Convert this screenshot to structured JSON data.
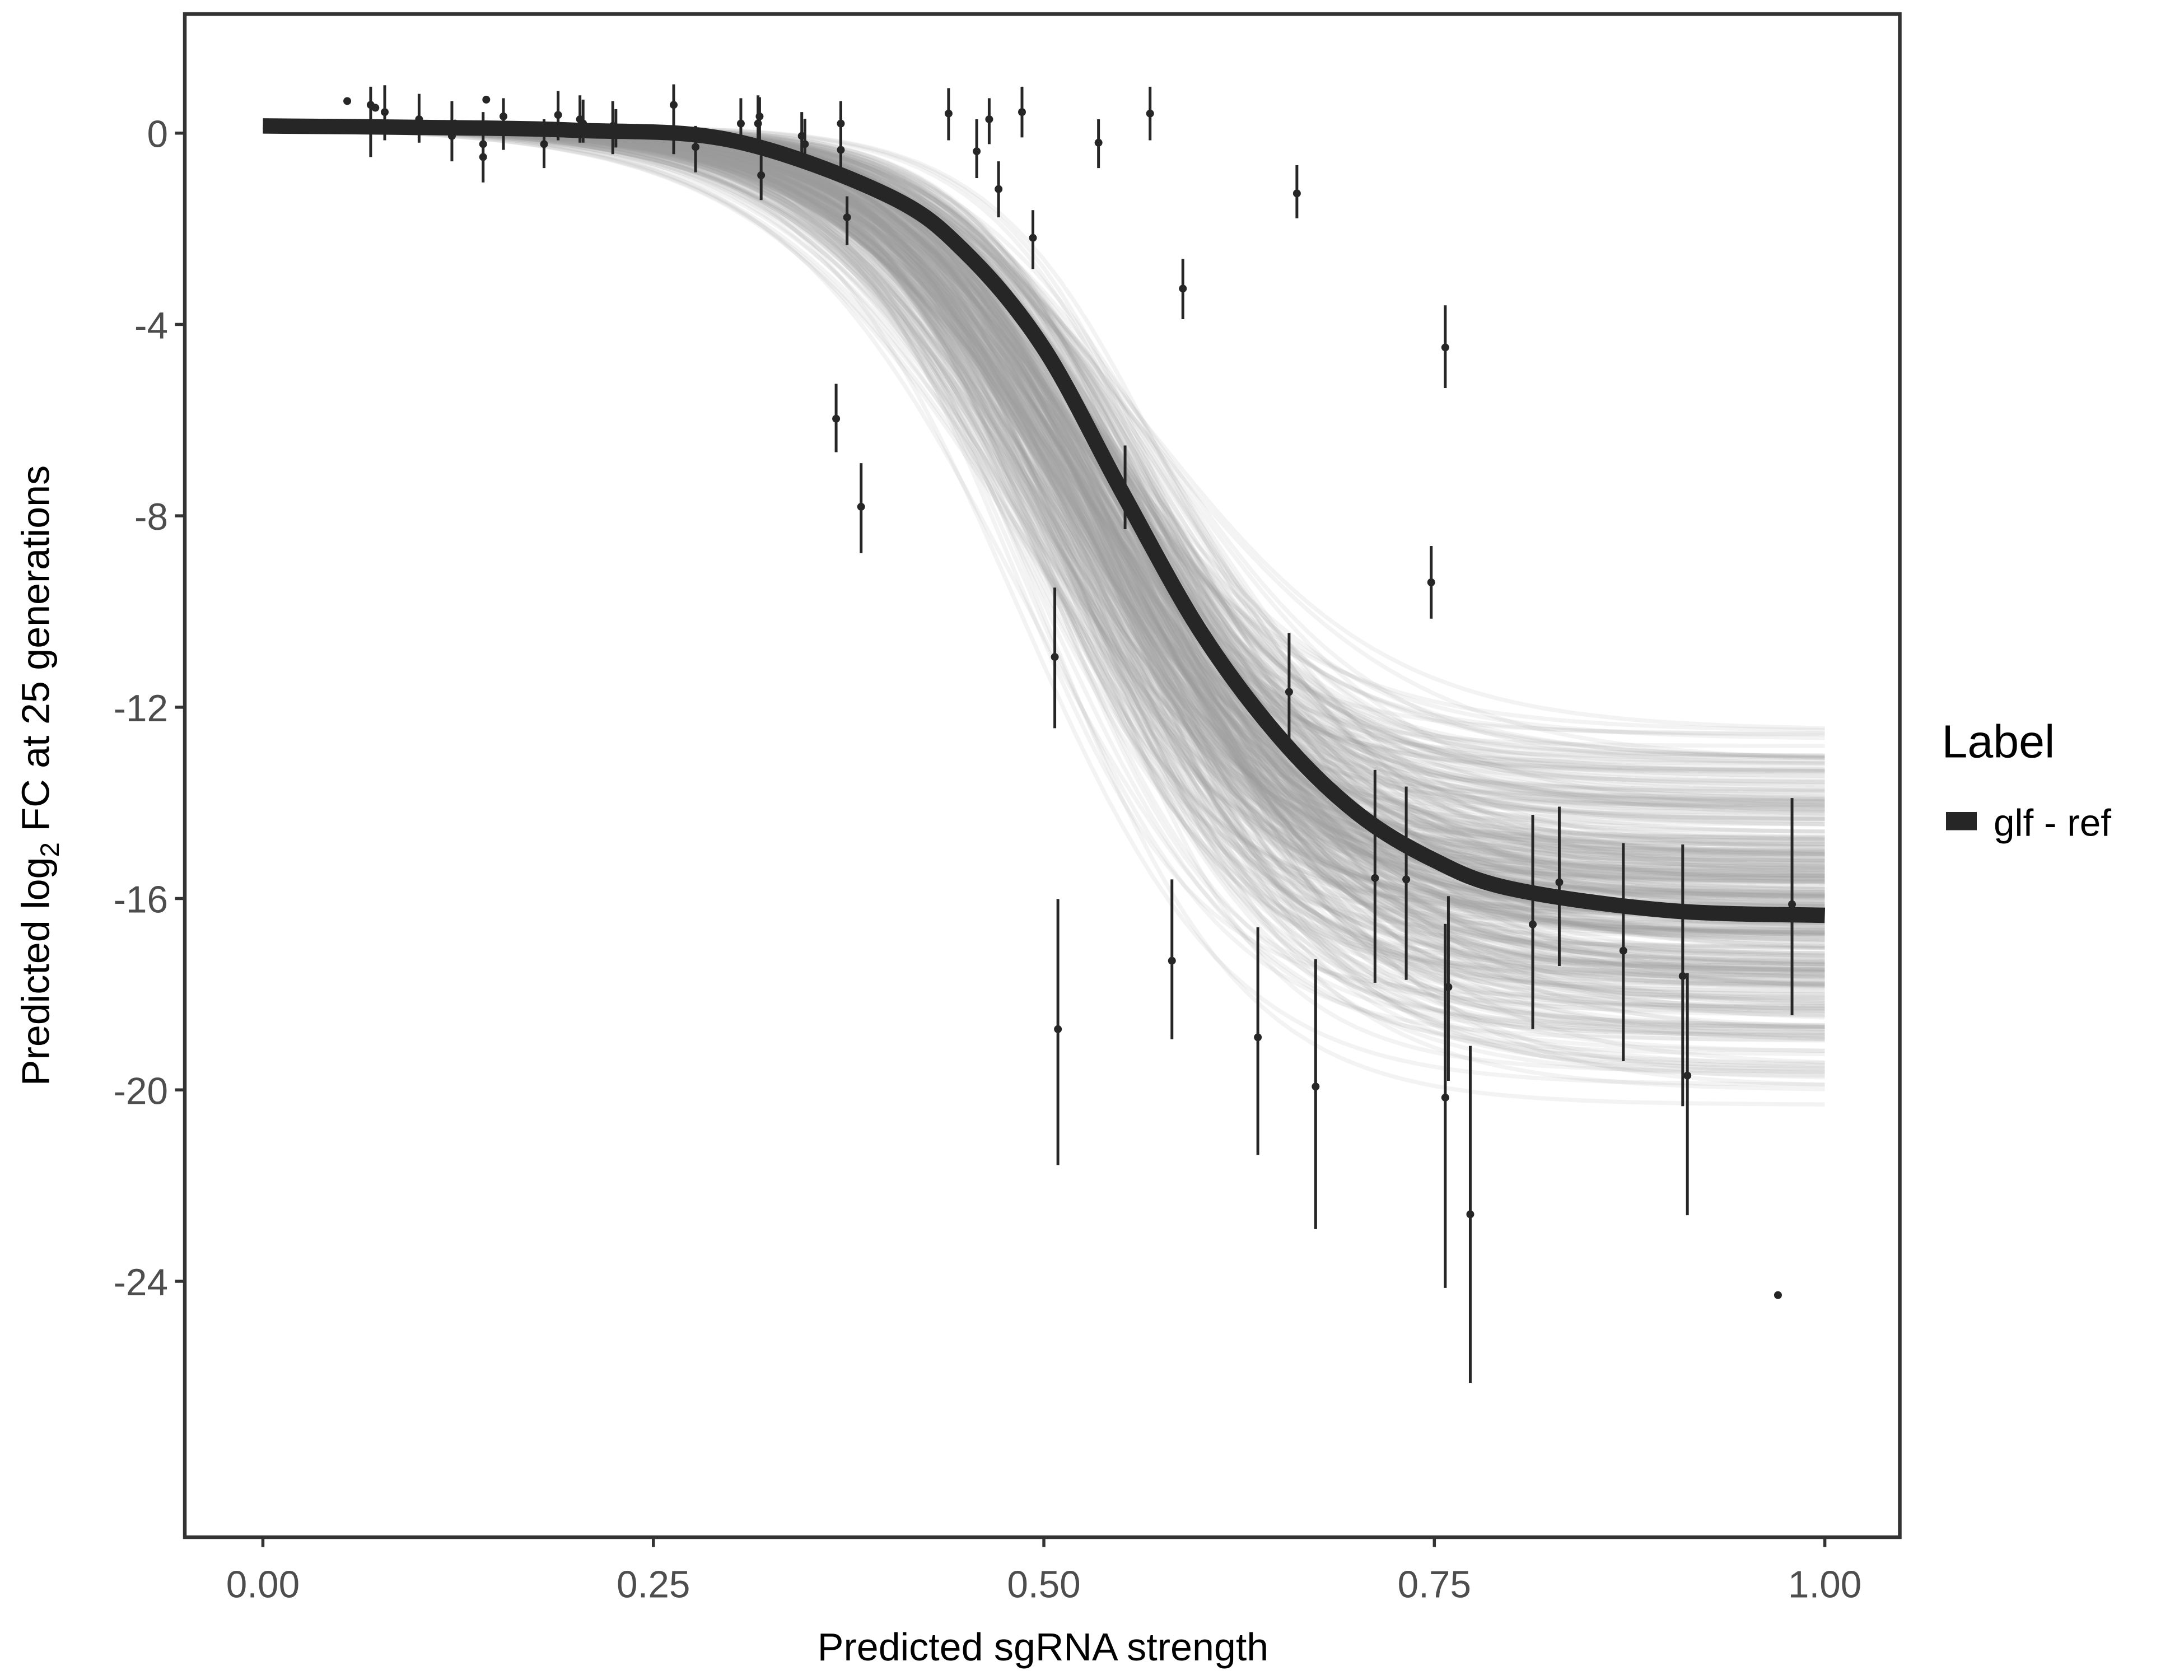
{
  "chart_data": {
    "type": "scatter",
    "xlabel": "Predicted sgRNA strength",
    "ylabel_parts": [
      "Predicted  log",
      "2",
      " FC at 25 generations"
    ],
    "xlim": [
      -0.05,
      1.048
    ],
    "ylim": [
      -29.35,
      2.49
    ],
    "x_ticks": [
      0,
      0.25,
      0.5,
      0.75,
      1.0
    ],
    "x_tick_labels": [
      "0.00",
      "0.25",
      "0.50",
      "0.75",
      "1.00"
    ],
    "y_ticks": [
      0,
      -4,
      -8,
      -12,
      -16,
      -20,
      -24
    ],
    "y_tick_labels": [
      "0",
      "-4",
      "-8",
      "-12",
      "-16",
      "-20",
      "-24"
    ],
    "grid": false,
    "legend": {
      "title": "Label",
      "placement": "right",
      "entries": [
        {
          "label": "glf - ref",
          "color": "#262626"
        }
      ]
    },
    "colors": {
      "fit": "#262626",
      "draws": "#9a9a9a",
      "points": "#262626",
      "frame": "#333333"
    },
    "fit_curve": {
      "x": [
        0,
        0.1,
        0.2,
        0.3,
        0.4,
        0.45,
        0.5,
        0.55,
        0.6,
        0.65,
        0.7,
        0.75,
        0.8,
        0.9,
        1.0
      ],
      "y": [
        0.15,
        0.12,
        0.06,
        -0.15,
        -1.3,
        -2.5,
        -4.5,
        -7.5,
        -10.4,
        -12.6,
        -14.2,
        -15.2,
        -15.8,
        -16.25,
        -16.35
      ]
    },
    "posterior_draws": {
      "count": 400,
      "top": 0.15,
      "bottom_range": [
        -20.4,
        -12.2
      ],
      "midpoint_range": [
        0.47,
        0.6
      ],
      "scale_range": [
        0.055,
        0.085
      ]
    },
    "points": [
      {
        "x": 0.054,
        "y": 0.67
      },
      {
        "x": 0.069,
        "y": 0.59,
        "lo": -0.5,
        "hi": 0.97
      },
      {
        "x": 0.072,
        "y": 0.53
      },
      {
        "x": 0.078,
        "y": 0.44,
        "lo": -0.15,
        "hi": 1.0
      },
      {
        "x": 0.1,
        "y": 0.29,
        "lo": -0.2,
        "hi": 0.82
      },
      {
        "x": 0.121,
        "y": -0.06,
        "lo": -0.59,
        "hi": 0.67
      },
      {
        "x": 0.123,
        "y": 0.2
      },
      {
        "x": 0.141,
        "y": -0.5,
        "lo": -1.03,
        "hi": 0.44
      },
      {
        "x": 0.141,
        "y": -0.23
      },
      {
        "x": 0.143,
        "y": 0.7
      },
      {
        "x": 0.154,
        "y": 0.35,
        "lo": -0.35,
        "hi": 0.73
      },
      {
        "x": 0.18,
        "y": -0.23,
        "lo": -0.73,
        "hi": 0.29
      },
      {
        "x": 0.189,
        "y": 0.38,
        "lo": -0.15,
        "hi": 0.88
      },
      {
        "x": 0.203,
        "y": 0.29,
        "lo": -0.2,
        "hi": 0.79
      },
      {
        "x": 0.205,
        "y": 0.2,
        "lo": -0.2,
        "hi": 0.7
      },
      {
        "x": 0.224,
        "y": 0.15,
        "lo": -0.44,
        "hi": 0.67
      },
      {
        "x": 0.226,
        "y": 0.0,
        "lo": -0.3,
        "hi": 0.5
      },
      {
        "x": 0.263,
        "y": 0.59,
        "lo": -0.44,
        "hi": 1.02
      },
      {
        "x": 0.277,
        "y": -0.29,
        "lo": -0.82,
        "hi": 0.15
      },
      {
        "x": 0.306,
        "y": 0.2,
        "lo": -0.2,
        "hi": 0.73
      },
      {
        "x": 0.317,
        "y": 0.2,
        "lo": -0.29,
        "hi": 0.79
      },
      {
        "x": 0.318,
        "y": 0.35,
        "lo": -0.2,
        "hi": 0.75
      },
      {
        "x": 0.319,
        "y": -0.88,
        "lo": -1.4,
        "hi": -0.44
      },
      {
        "x": 0.345,
        "y": -0.06,
        "lo": -0.59,
        "hi": 0.44
      },
      {
        "x": 0.347,
        "y": -0.23,
        "lo": -0.6,
        "hi": 0.3
      },
      {
        "x": 0.37,
        "y": -0.35,
        "lo": -1.03,
        "hi": 0.67
      },
      {
        "x": 0.37,
        "y": 0.2,
        "lo": -0.2,
        "hi": 0.5
      },
      {
        "x": 0.374,
        "y": -1.76,
        "lo": -2.34,
        "hi": -1.32
      },
      {
        "x": 0.367,
        "y": -5.97,
        "lo": -6.67,
        "hi": -5.24
      },
      {
        "x": 0.383,
        "y": -7.81,
        "lo": -8.78,
        "hi": -6.9
      },
      {
        "x": 0.439,
        "y": 0.41,
        "lo": -0.15,
        "hi": 0.94
      },
      {
        "x": 0.457,
        "y": -0.38,
        "lo": -0.94,
        "hi": 0.29
      },
      {
        "x": 0.465,
        "y": 0.29,
        "lo": -0.23,
        "hi": 0.73
      },
      {
        "x": 0.471,
        "y": -1.17,
        "lo": -1.76,
        "hi": -0.59
      },
      {
        "x": 0.486,
        "y": 0.44,
        "lo": -0.09,
        "hi": 0.97
      },
      {
        "x": 0.493,
        "y": -2.19,
        "lo": -2.84,
        "hi": -1.61
      },
      {
        "x": 0.507,
        "y": -10.95,
        "lo": -12.44,
        "hi": -9.5
      },
      {
        "x": 0.509,
        "y": -18.73,
        "lo": -21.57,
        "hi": -16.01
      },
      {
        "x": 0.535,
        "y": -0.2,
        "lo": -0.73,
        "hi": 0.29
      },
      {
        "x": 0.552,
        "y": -7.49,
        "lo": -8.28,
        "hi": -6.53
      },
      {
        "x": 0.568,
        "y": 0.41,
        "lo": -0.15,
        "hi": 0.97
      },
      {
        "x": 0.582,
        "y": -17.3,
        "lo": -18.94,
        "hi": -15.6
      },
      {
        "x": 0.589,
        "y": -3.25,
        "lo": -3.89,
        "hi": -2.63
      },
      {
        "x": 0.637,
        "y": -18.9,
        "lo": -21.36,
        "hi": -16.6
      },
      {
        "x": 0.657,
        "y": -11.68,
        "lo": -12.88,
        "hi": -10.45
      },
      {
        "x": 0.662,
        "y": -1.26,
        "lo": -1.78,
        "hi": -0.67
      },
      {
        "x": 0.674,
        "y": -19.93,
        "lo": -22.91,
        "hi": -17.27
      },
      {
        "x": 0.712,
        "y": -15.57,
        "lo": -17.76,
        "hi": -13.31
      },
      {
        "x": 0.732,
        "y": -15.6,
        "lo": -17.7,
        "hi": -13.66
      },
      {
        "x": 0.748,
        "y": -9.39,
        "lo": -10.15,
        "hi": -8.63
      },
      {
        "x": 0.757,
        "y": -4.48,
        "lo": -5.33,
        "hi": -3.6
      },
      {
        "x": 0.757,
        "y": -20.16,
        "lo": -24.14,
        "hi": -16.53
      },
      {
        "x": 0.759,
        "y": -17.85,
        "lo": -19.81,
        "hi": -15.95
      },
      {
        "x": 0.773,
        "y": -22.6,
        "lo": -26.13,
        "hi": -19.08
      },
      {
        "x": 0.813,
        "y": -16.54,
        "lo": -18.73,
        "hi": -14.25
      },
      {
        "x": 0.83,
        "y": -15.66,
        "lo": -17.41,
        "hi": -14.08
      },
      {
        "x": 0.871,
        "y": -17.09,
        "lo": -19.4,
        "hi": -14.84
      },
      {
        "x": 0.909,
        "y": -17.62,
        "lo": -20.34,
        "hi": -14.87
      },
      {
        "x": 0.912,
        "y": -19.7,
        "lo": -22.62,
        "hi": -17.56
      },
      {
        "x": 0.97,
        "y": -24.29
      },
      {
        "x": 0.979,
        "y": -16.12,
        "lo": -18.44,
        "hi": -13.9
      }
    ]
  }
}
